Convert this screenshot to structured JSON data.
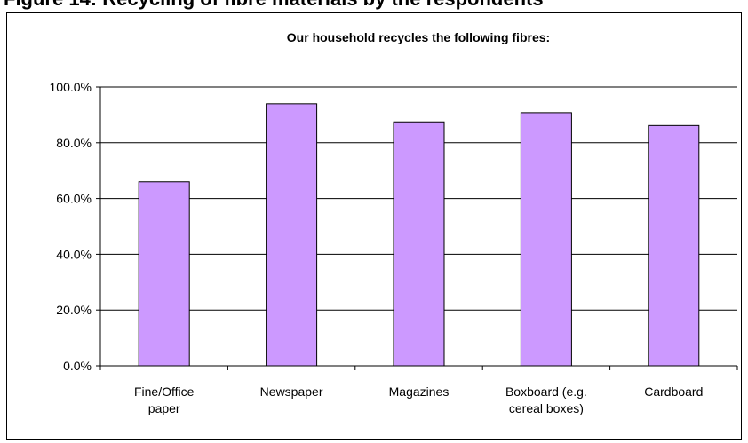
{
  "heading": "Figure 14: Recycling of fibre materials by the respondents",
  "chart_data": {
    "type": "bar",
    "title": "Our household recycles the following fibres:",
    "categories": [
      [
        "Fine/Office",
        "paper"
      ],
      [
        "Newspaper"
      ],
      [
        "Magazines"
      ],
      [
        "Boxboard (e.g.",
        "cereal boxes)"
      ],
      [
        "Cardboard"
      ]
    ],
    "values": [
      66.0,
      94.0,
      87.5,
      90.8,
      86.2
    ],
    "ylim": [
      0,
      100
    ],
    "yticks": [
      0,
      20,
      40,
      60,
      80,
      100
    ],
    "ytick_labels": [
      "0.0%",
      "20.0%",
      "40.0%",
      "60.0%",
      "80.0%",
      "100.0%"
    ],
    "xlabel": "",
    "ylabel": "",
    "grid": true,
    "legend": false,
    "colors": {
      "bar_fill": "#cc99ff",
      "bar_stroke": "#000000",
      "grid": "#000000"
    }
  }
}
